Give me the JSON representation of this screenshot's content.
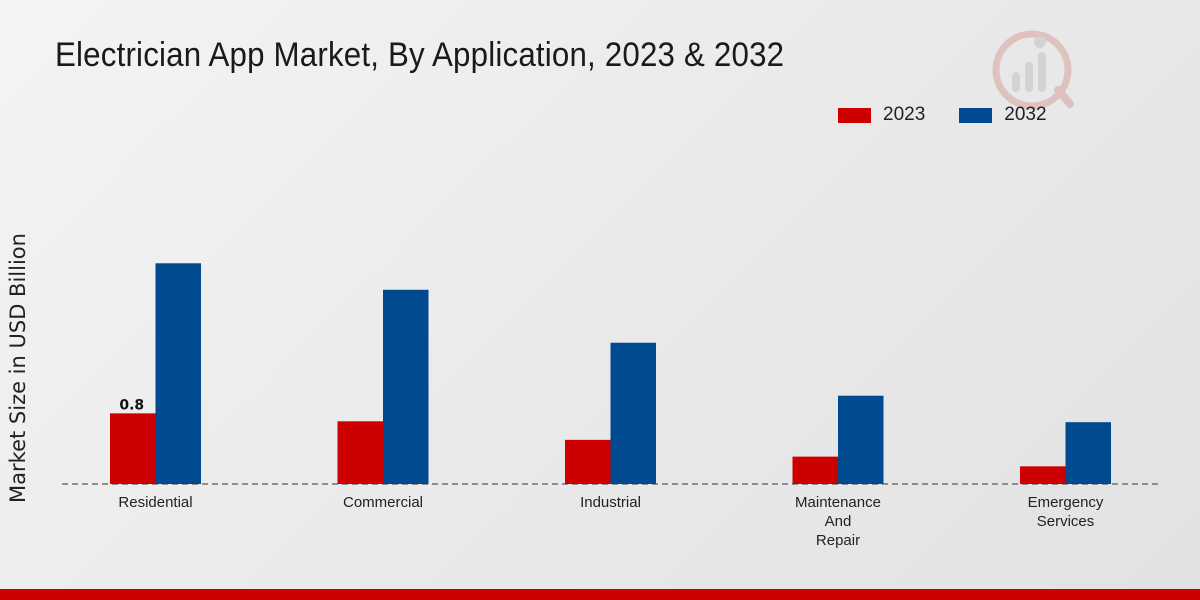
{
  "chart_data": {
    "type": "bar",
    "title": "Electrician App Market, By Application, 2023 & 2032",
    "xlabel": "",
    "ylabel": "Market Size in USD Billion",
    "categories": [
      "Residential",
      "Commercial",
      "Industrial",
      "Maintenance And Repair",
      "Emergency Services"
    ],
    "category_lines": [
      [
        "Residential"
      ],
      [
        "Commercial"
      ],
      [
        "Industrial"
      ],
      [
        "Maintenance",
        "And",
        "Repair"
      ],
      [
        "Emergency",
        "Services"
      ]
    ],
    "series": [
      {
        "name": "2023",
        "color": "#cc0000",
        "values": [
          0.8,
          0.71,
          0.5,
          0.31,
          0.2
        ]
      },
      {
        "name": "2032",
        "color": "#004a8f",
        "values": [
          2.5,
          2.2,
          1.6,
          1.0,
          0.7
        ]
      }
    ],
    "data_labels": [
      {
        "series": 0,
        "index": 0,
        "text": "0.8"
      }
    ],
    "ylim": [
      0,
      3.5
    ],
    "grid": false,
    "legend_position": "top-right"
  }
}
